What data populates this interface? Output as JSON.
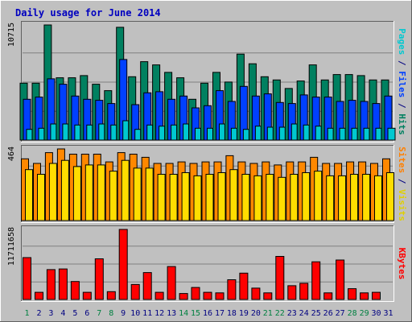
{
  "chart_data": {
    "type": "bar",
    "title": "Daily usage for June 2014",
    "categories": [
      "1",
      "2",
      "3",
      "4",
      "5",
      "6",
      "7",
      "8",
      "9",
      "10",
      "11",
      "12",
      "13",
      "14",
      "15",
      "16",
      "17",
      "18",
      "19",
      "20",
      "21",
      "22",
      "23",
      "24",
      "25",
      "26",
      "27",
      "28",
      "29",
      "30",
      "31"
    ],
    "weekend_days": [
      "1",
      "7",
      "8",
      "14",
      "15",
      "21",
      "22",
      "28",
      "29"
    ],
    "panels": [
      {
        "max_label": "10715",
        "ymax": 10715,
        "side_labels": [
          {
            "text": "Pages",
            "color": "#00c8d0"
          },
          {
            "text": " / ",
            "color": "#000080"
          },
          {
            "text": "Files",
            "color": "#0040ff"
          },
          {
            "text": " / ",
            "color": "#000080"
          },
          {
            "text": "Hits",
            "color": "#008060"
          }
        ],
        "series": [
          {
            "name": "Hits",
            "color": "#008060",
            "values": [
              5300,
              5300,
              10715,
              5800,
              5800,
              6000,
              5200,
              4600,
              10500,
              5900,
              7300,
              7000,
              6300,
              5800,
              3800,
              5300,
              6300,
              5400,
              8000,
              7100,
              5900,
              5600,
              4800,
              5500,
              7000,
              5600,
              6100,
              6100,
              6000,
              5600,
              5600
            ]
          },
          {
            "name": "Files",
            "color": "#0040ff",
            "values": [
              3800,
              4000,
              5700,
              5200,
              4100,
              3800,
              3700,
              3400,
              7500,
              3300,
              4400,
              4500,
              3800,
              4100,
              3000,
              3200,
              4600,
              3600,
              5000,
              4100,
              4300,
              3500,
              3400,
              4200,
              4000,
              4000,
              3600,
              3700,
              3600,
              3400,
              4100
            ]
          },
          {
            "name": "Pages",
            "color": "#00c8d0",
            "values": [
              1000,
              1100,
              1500,
              1500,
              1400,
              1400,
              1500,
              1400,
              1800,
              1000,
              1400,
              1300,
              1400,
              1500,
              1100,
              1100,
              1500,
              1100,
              1000,
              1300,
              1200,
              1200,
              1500,
              1400,
              1300,
              1100,
              1100,
              1100,
              1100,
              1100,
              1100
            ]
          }
        ]
      },
      {
        "max_label": "464",
        "ymax": 464,
        "side_labels": [
          {
            "text": "Sites",
            "color": "#ff8000"
          },
          {
            "text": " / ",
            "color": "#000080"
          },
          {
            "text": "Visits",
            "color": "#e0d000"
          }
        ],
        "series": [
          {
            "name": "Visits",
            "color": "#ff8800",
            "values": [
              400,
              370,
              440,
              464,
              430,
              430,
              430,
              380,
              440,
              430,
              410,
              370,
              370,
              380,
              370,
              380,
              380,
              420,
              380,
              370,
              380,
              360,
              380,
              380,
              410,
              370,
              370,
              380,
              380,
              370,
              400
            ]
          },
          {
            "name": "Sites",
            "color": "#ffdd00",
            "values": [
              330,
              300,
              370,
              390,
              350,
              360,
              360,
              320,
              390,
              340,
              340,
              300,
              300,
              310,
              290,
              300,
              310,
              330,
              300,
              290,
              300,
              280,
              300,
              310,
              320,
              290,
              290,
              300,
              300,
              290,
              310
            ]
          }
        ]
      },
      {
        "max_label": "11711658",
        "ymax": 11711658,
        "side_labels": [
          {
            "text": "KBytes",
            "color": "#ff0000"
          }
        ],
        "series": [
          {
            "name": "KBytes",
            "color": "#ff0000",
            "values": [
              7000000,
              1200000,
              5000000,
              5100000,
              3000000,
              1200000,
              6800000,
              1300000,
              11711658,
              2500000,
              4500000,
              1200000,
              5500000,
              1000000,
              2000000,
              1200000,
              1100000,
              3300000,
              4400000,
              1900000,
              1100000,
              7200000,
              2300000,
              2700000,
              6300000,
              1100000,
              6600000,
              1800000,
              1100000,
              1200000,
              null
            ]
          }
        ]
      }
    ]
  }
}
